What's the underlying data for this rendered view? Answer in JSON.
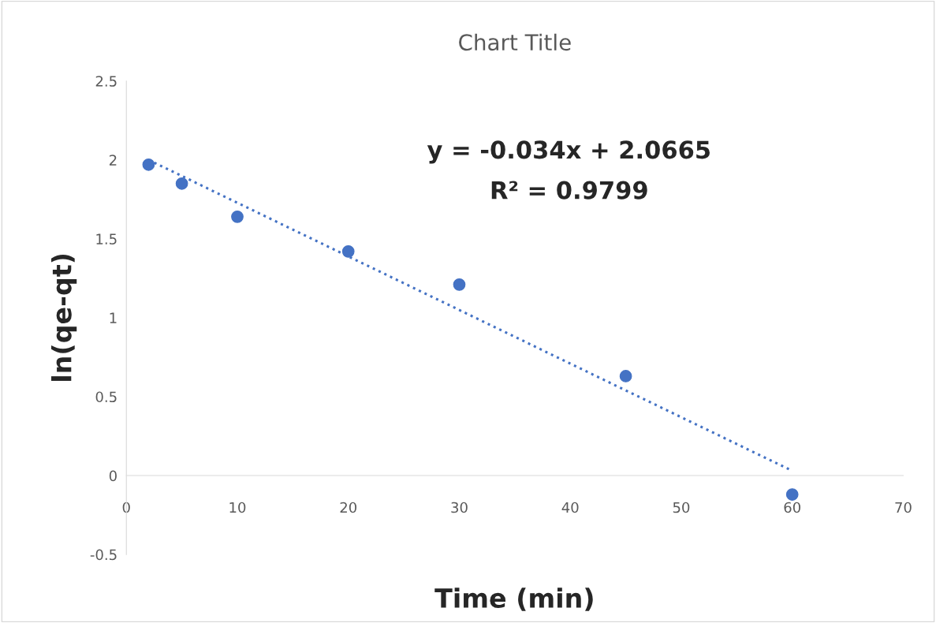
{
  "chart_data": {
    "type": "scatter",
    "title": "Chart Title",
    "xlabel": "Time (min)",
    "ylabel": "ln(qe-qt)",
    "annotations": [
      "y = -0.034x + 2.0665",
      "R² = 0.9799"
    ],
    "series": [
      {
        "color": "#4472c4",
        "marker": "circle",
        "x": [
          2,
          5,
          10,
          20,
          30,
          45,
          60
        ],
        "values": [
          1.97,
          1.85,
          1.64,
          1.42,
          1.21,
          0.63,
          -0.12
        ]
      },
      {
        "type": "line",
        "color": "#4472c4",
        "line_style": "dotted",
        "marker": "none",
        "x": [
          2,
          60
        ],
        "values": [
          2.0,
          0.03
        ]
      }
    ],
    "xlim": [
      0,
      70
    ],
    "xticks": [
      0,
      10,
      20,
      30,
      40,
      50,
      60,
      70
    ],
    "ylim": [
      -0.5,
      2.5
    ],
    "yticks": [
      -0.5,
      0,
      0.5,
      1,
      1.5,
      2,
      2.5
    ],
    "grid": false
  }
}
